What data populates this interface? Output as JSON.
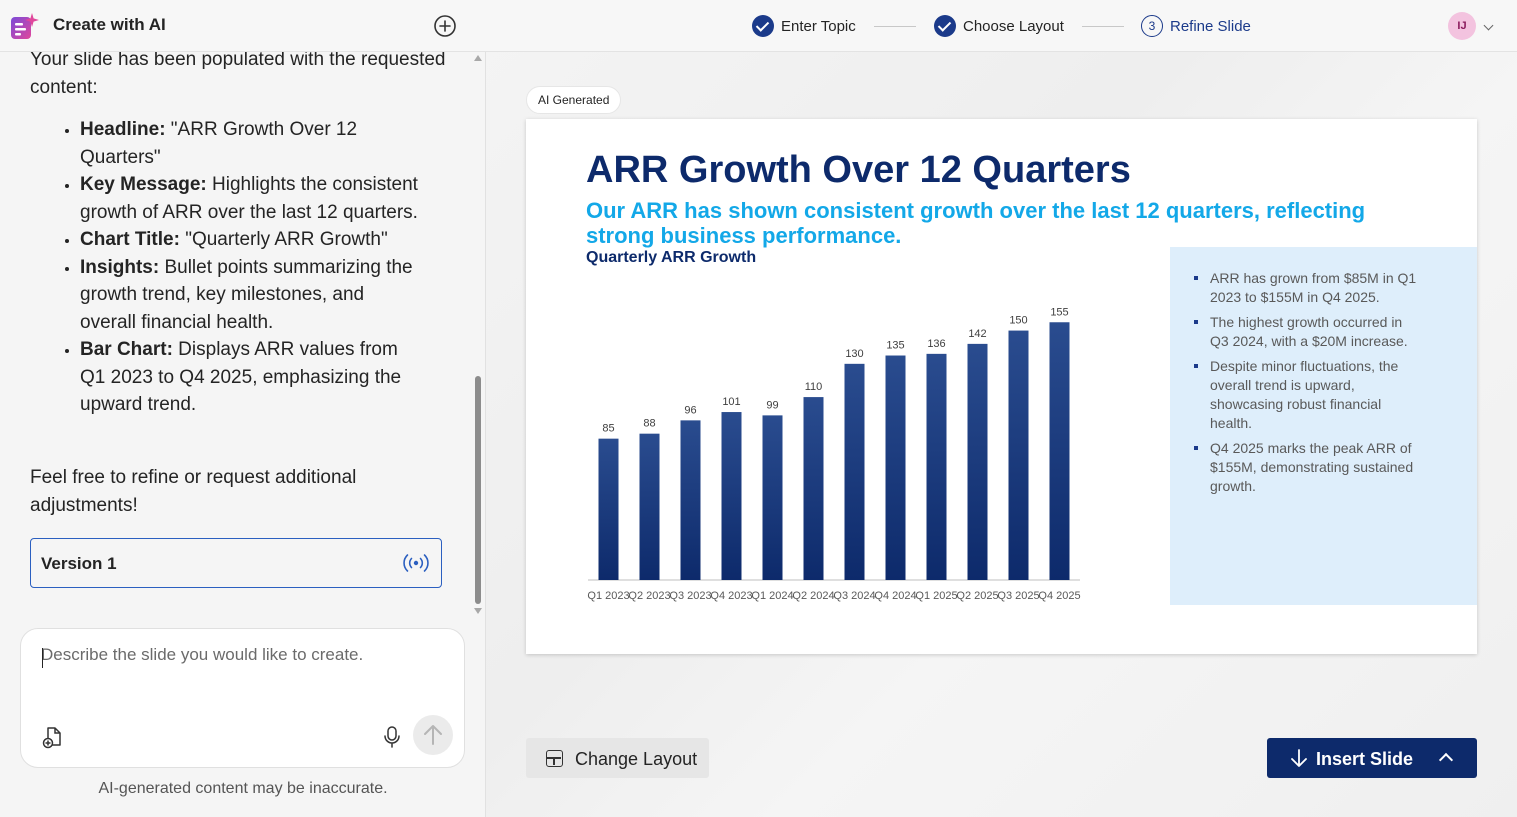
{
  "app": {
    "title": "Create with AI",
    "logo_icon": "sparkle-slides-icon",
    "new_chat_icon": "add-circle-icon"
  },
  "chat": {
    "intro": "Your slide has been populated with the requested content:",
    "items": [
      {
        "label": "Headline:",
        "text": " \"ARR Growth Over 12 Quarters\""
      },
      {
        "label": "Key Message:",
        "text": " Highlights the consistent growth of ARR over the last 12 quarters."
      },
      {
        "label": "Chart Title:",
        "text": " \"Quarterly ARR Growth\""
      },
      {
        "label": "Insights:",
        "text": " Bullet points summarizing the growth trend, key milestones, and overall financial health."
      },
      {
        "label": "Bar Chart:",
        "text": " Displays ARR values from Q1 2023 to Q4 2025, emphasizing the upward trend."
      }
    ],
    "outro": "Feel free to refine or request additional adjustments!",
    "version_label": "Version 1",
    "version_icon": "broadcast-icon"
  },
  "composer": {
    "placeholder": "Describe the slide you would like to create.",
    "value": "",
    "attach_icon": "attach-file-icon",
    "mic_icon": "microphone-icon",
    "send_icon": "arrow-up-icon"
  },
  "disclaimer": "AI-generated content may be inaccurate.",
  "steps": [
    {
      "label": "Enter Topic",
      "state": "done"
    },
    {
      "label": "Choose Layout",
      "state": "done"
    },
    {
      "label": "Refine Slide",
      "state": "active",
      "number": "3"
    }
  ],
  "user": {
    "initials": "IJ"
  },
  "badge": "AI Generated",
  "slide": {
    "title": "ARR Growth Over 12 Quarters",
    "subtitle": "Our ARR has shown consistent growth over the last 12 quarters, reflecting strong business performance.",
    "chart_title": "Quarterly ARR Growth",
    "insights": [
      "ARR has grown from $85M in Q1 2023 to $155M in Q4 2025.",
      "The highest growth occurred in Q3 2024, with a $20M increase.",
      "Despite minor fluctuations, the overall trend is upward, showcasing robust financial health.",
      "Q4 2025 marks the peak ARR of $155M, demonstrating sustained growth."
    ]
  },
  "chart_data": {
    "type": "bar",
    "title": "Quarterly ARR Growth",
    "categories": [
      "Q1 2023",
      "Q2 2023",
      "Q3 2023",
      "Q4 2023",
      "Q1 2024",
      "Q2 2024",
      "Q3 2024",
      "Q4 2024",
      "Q1 2025",
      "Q2 2025",
      "Q3 2025",
      "Q4 2025"
    ],
    "values": [
      85,
      88,
      96,
      101,
      99,
      110,
      130,
      135,
      136,
      142,
      150,
      155
    ],
    "xlabel": "",
    "ylabel": "",
    "ylim": [
      0,
      175
    ],
    "grid": false,
    "data_labels": true,
    "bar_color": "#0d2a6b"
  },
  "actions": {
    "change_layout": "Change Layout",
    "insert_slide": "Insert Slide"
  }
}
